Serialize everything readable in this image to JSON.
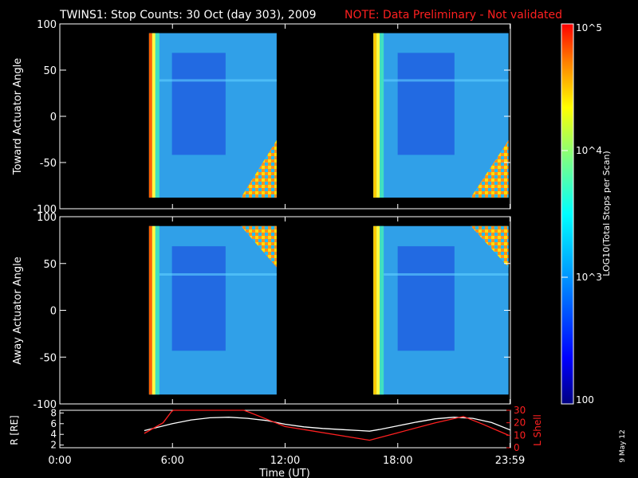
{
  "title": {
    "main": "TWINS1: Stop Counts: 30 Oct (day 303), 2009",
    "note": "NOTE: Data Preliminary - Not validated",
    "note_color": "#ff2020"
  },
  "datestamp": "9 May 12",
  "colorbar": {
    "label": "LOG10(Total Stops per Scan)",
    "ticks": [
      "10^5",
      "10^4",
      "10^3",
      "100"
    ],
    "range": [
      100,
      100000
    ],
    "scale": "log",
    "colormap": "rainbow"
  },
  "chart_data": [
    {
      "type": "heatmap",
      "panel": "toward",
      "ylabel": "Toward Actuator Angle",
      "ylim": [
        -100,
        100
      ],
      "yticks": [
        "100",
        "50",
        "0",
        "-50",
        "-100"
      ],
      "xlim": [
        0,
        24
      ],
      "data_blocks": [
        {
          "x": [
            4.75,
            11.55
          ],
          "y": [
            -88,
            90
          ]
        },
        {
          "x": [
            16.7,
            23.9
          ],
          "y": [
            -88,
            90
          ]
        }
      ],
      "colorbar_range": [
        100,
        100000
      ]
    },
    {
      "type": "heatmap",
      "panel": "away",
      "ylabel": "Away Actuator Angle",
      "ylim": [
        -100,
        100
      ],
      "yticks": [
        "100",
        "50",
        "0",
        "-50",
        "-100"
      ],
      "xlim": [
        0,
        24
      ],
      "data_blocks": [
        {
          "x": [
            4.75,
            11.55
          ],
          "y": [
            -90,
            90
          ]
        },
        {
          "x": [
            16.7,
            23.9
          ],
          "y": [
            -90,
            90
          ]
        }
      ],
      "colorbar_range": [
        100,
        100000
      ]
    },
    {
      "type": "line",
      "panel": "orbit",
      "ylabel_left": "R [RE]",
      "ylabel_right": "L Shell",
      "xlabel": "Time (UT)",
      "xticks": [
        "0:00",
        "6:00",
        "12:00",
        "18:00",
        "23:59"
      ],
      "xlim": [
        0,
        24
      ],
      "ylim_left": [
        1.5,
        8.5
      ],
      "yticks_left": [
        "8",
        "6",
        "4",
        "2"
      ],
      "ylim_right": [
        0,
        30
      ],
      "yticks_right": [
        "30",
        "20",
        "10",
        "0"
      ],
      "series": [
        {
          "axis": "left",
          "color": "#ffffff",
          "x": [
            4.5,
            6,
            7,
            8,
            9,
            10,
            11,
            12,
            13,
            14,
            15,
            16,
            16.5,
            17,
            18,
            19,
            20,
            21,
            22,
            23,
            24
          ],
          "y": [
            4.7,
            6.0,
            6.7,
            7.1,
            7.2,
            7.0,
            6.6,
            5.9,
            5.4,
            5.1,
            4.9,
            4.7,
            4.6,
            4.9,
            5.6,
            6.3,
            6.9,
            7.2,
            7.0,
            6.2,
            4.8
          ]
        },
        {
          "axis": "right",
          "color": "#ff2020",
          "x": [
            4.5,
            5.5,
            5.95,
            6.05,
            9.8,
            10.0,
            11.5,
            12.0,
            16.5,
            18,
            20,
            21.5,
            22.5,
            23.9
          ],
          "y": [
            11.5,
            20,
            29,
            30,
            30,
            29,
            20,
            17,
            6,
            12,
            20,
            25,
            19,
            10
          ]
        }
      ]
    }
  ]
}
